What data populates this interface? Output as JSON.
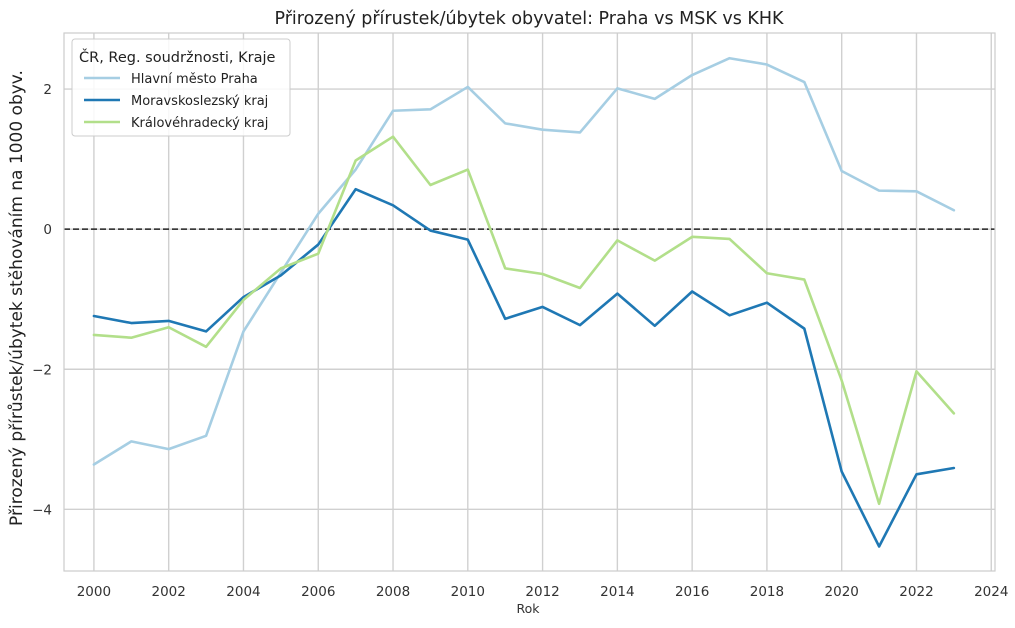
{
  "chart_data": {
    "type": "line",
    "title": "Přirozený přírustek/úbytek obyvatel: Praha vs MSK vs KHK",
    "xlabel": "Rok",
    "ylabel": "Přirozený přírůstek/úbytek stěhováním na 1000 obyv.",
    "xlim": [
      1999.2,
      2024.1
    ],
    "ylim": [
      -4.88,
      2.8
    ],
    "x_ticks": [
      2000,
      2002,
      2004,
      2006,
      2008,
      2010,
      2012,
      2014,
      2016,
      2018,
      2020,
      2022,
      2024
    ],
    "y_ticks": [
      -4,
      -2,
      0,
      2
    ],
    "y_tick_labels": [
      "−4",
      "−2",
      "0",
      "2"
    ],
    "reference_line": {
      "y": 0,
      "style": "dashed",
      "color": "#222222"
    },
    "grid": true,
    "legend": {
      "title": "ČR, Reg. soudržnosti, Kraje",
      "placement": "top-left"
    },
    "x": [
      2000,
      2001,
      2002,
      2003,
      2004,
      2005,
      2006,
      2007,
      2008,
      2009,
      2010,
      2011,
      2012,
      2013,
      2014,
      2015,
      2016,
      2017,
      2018,
      2019,
      2020,
      2021,
      2022,
      2023
    ],
    "series": [
      {
        "name": "Hlavní město Praha",
        "color": "#a6cee3",
        "values": [
          -3.36,
          -3.03,
          -3.14,
          -2.95,
          -1.46,
          -0.62,
          0.22,
          0.85,
          1.69,
          1.71,
          2.03,
          1.51,
          1.42,
          1.38,
          2.01,
          1.86,
          2.2,
          2.44,
          2.35,
          2.1,
          0.83,
          0.55,
          0.54,
          0.27
        ]
      },
      {
        "name": "Moravskoslezský kraj",
        "color": "#1f78b4",
        "values": [
          -1.24,
          -1.34,
          -1.31,
          -1.46,
          -0.97,
          -0.66,
          -0.22,
          0.57,
          0.34,
          -0.02,
          -0.15,
          -1.28,
          -1.11,
          -1.37,
          -0.92,
          -1.38,
          -0.89,
          -1.23,
          -1.05,
          -1.42,
          -3.46,
          -4.53,
          -3.5,
          -3.41
        ]
      },
      {
        "name": "Královéhradecký kraj",
        "color": "#b2df8a",
        "values": [
          -1.51,
          -1.55,
          -1.4,
          -1.68,
          -1.01,
          -0.56,
          -0.35,
          0.98,
          1.32,
          0.63,
          0.85,
          -0.56,
          -0.64,
          -0.84,
          -0.16,
          -0.45,
          -0.11,
          -0.14,
          -0.63,
          -0.72,
          -2.16,
          -3.92,
          -2.03,
          -2.63
        ]
      }
    ]
  }
}
